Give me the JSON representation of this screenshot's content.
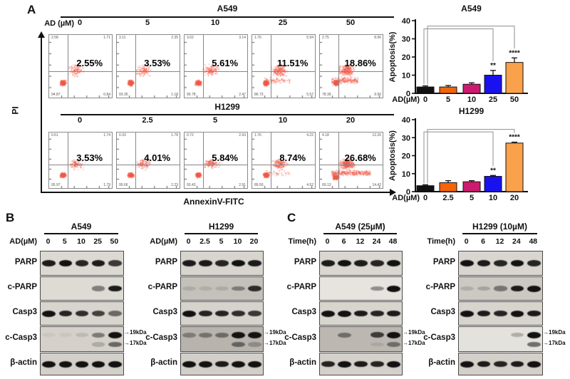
{
  "panels": {
    "a": "A",
    "b": "B",
    "c": "C"
  },
  "panel_a": {
    "dose_label": "AD (µM)",
    "y_axis": "PI",
    "x_axis": "AnnexinV-FITC",
    "rows": [
      {
        "cell_line": "A549",
        "doses": [
          "0",
          "5",
          "10",
          "25",
          "50"
        ],
        "plots": [
          {
            "pct": "2.55%",
            "q": {
              "ul": "2.58",
              "ur": "1.71",
              "ll": "94.87",
              "lr": "0.84"
            }
          },
          {
            "pct": "3.53%",
            "q": {
              "ul": "3.11",
              "ur": "2.35",
              "ll": "93.35",
              "lr": "1.18"
            }
          },
          {
            "pct": "5.61%",
            "q": {
              "ul": "3.62",
              "ur": "3.14",
              "ll": "90.78",
              "lr": "2.47"
            }
          },
          {
            "pct": "11.51%",
            "q": {
              "ul": "1.76",
              "ur": "5.94",
              "ll": "86.73",
              "lr": "5.57"
            }
          },
          {
            "pct": "18.86%",
            "q": {
              "ul": "2.75",
              "ur": "8.96",
              "ll": "78.39",
              "lr": "9.90"
            }
          }
        ]
      },
      {
        "cell_line": "H1299",
        "doses": [
          "0",
          "2.5",
          "5",
          "10",
          "20"
        ],
        "plots": [
          {
            "pct": "3.53%",
            "q": {
              "ul": "0.51",
              "ur": "1.74",
              "ll": "95.97",
              "lr": "1.79"
            }
          },
          {
            "pct": "4.01%",
            "q": {
              "ul": "0.33",
              "ur": "1.78",
              "ll": "95.66",
              "lr": "2.23"
            }
          },
          {
            "pct": "5.84%",
            "q": {
              "ul": "0.72",
              "ur": "2.93",
              "ll": "93.43",
              "lr": "2.91"
            }
          },
          {
            "pct": "8.74%",
            "q": {
              "ul": "1.76",
              "ur": "4.22",
              "ll": "89.50",
              "lr": "4.52"
            }
          },
          {
            "pct": "26.68%",
            "q": {
              "ul": "4.18",
              "ur": "12.26",
              "ll": "69.13",
              "lr": "14.42"
            }
          }
        ]
      }
    ]
  },
  "chart_data": [
    {
      "type": "bar",
      "title": "A549",
      "ylabel": "Apoptosis(%)",
      "xlabel_prefix": "AD(µM)",
      "categories": [
        "0",
        "5",
        "10",
        "25",
        "50"
      ],
      "values": [
        3.5,
        3.5,
        5,
        10,
        17
      ],
      "errors": [
        0.6,
        0.8,
        0.8,
        2.6,
        2.5
      ],
      "sig": [
        "",
        "",
        "",
        "**",
        "****"
      ],
      "ylim": [
        0,
        40
      ],
      "yticks": [
        0,
        10,
        20,
        30,
        40
      ],
      "bar_colors": [
        "#111111",
        "#F4640A",
        "#CE1A6E",
        "#1A12EE",
        "#F9A14B"
      ],
      "comparisons": [
        {
          "from": 0,
          "to": 3,
          "level": 35.5
        },
        {
          "from": 0,
          "to": 4,
          "level": 37
        }
      ]
    },
    {
      "type": "bar",
      "title": "H1299",
      "ylabel": "Apoptosis(%)",
      "xlabel_prefix": "AD(µM)",
      "categories": [
        "0",
        "2.5",
        "5",
        "10",
        "20"
      ],
      "values": [
        3.3,
        5,
        5.5,
        8.5,
        27
      ],
      "errors": [
        0.5,
        1.1,
        0.6,
        0.5,
        0.5
      ],
      "sig": [
        "",
        "",
        "",
        "**",
        "****"
      ],
      "ylim": [
        0,
        40
      ],
      "yticks": [
        0,
        10,
        20,
        30,
        40
      ],
      "bar_colors": [
        "#111111",
        "#F4640A",
        "#CE1A6E",
        "#1A12EE",
        "#F9A14B"
      ],
      "comparisons": [
        {
          "from": 0,
          "to": 3,
          "level": 33.2
        },
        {
          "from": 0,
          "to": 4,
          "level": 34.6
        }
      ]
    }
  ],
  "blots": {
    "kda_labels": [
      "19kDa",
      "17kDa"
    ],
    "groups": [
      {
        "panel": "B",
        "title": "A549",
        "cond": "AD(µM)",
        "lanes": [
          "0",
          "5",
          "10",
          "25",
          "50"
        ],
        "rows": [
          {
            "name": "PARP",
            "bg": "#dcd9d3",
            "bands": [
              [
                0.95,
                1,
                0.9,
                0.95,
                0.8
              ]
            ]
          },
          {
            "name": "c-PARP",
            "bg": "#dedbd5",
            "bands": [
              [
                0,
                0,
                0,
                0.45,
                0.95
              ]
            ]
          },
          {
            "name": "Casp3",
            "bg": "#d8d4ce",
            "bands": [
              [
                1,
                0.9,
                0.85,
                0.75,
                0.55
              ]
            ]
          },
          {
            "name": "c-Casp3",
            "bg": "#d5d1ca",
            "kda": true,
            "bands": [
              [
                0.05,
                0.05,
                0.12,
                0.45,
                1
              ],
              [
                0,
                0,
                0,
                0.2,
                0.55
              ]
            ]
          },
          {
            "name": "β-actin",
            "bg": "#d3cfc9",
            "bands": [
              [
                1,
                1,
                1,
                1,
                1
              ]
            ]
          }
        ]
      },
      {
        "panel": "B",
        "title": "H1299",
        "cond": "AD(µM)",
        "lanes": [
          "0",
          "2.5",
          "5",
          "10",
          "20"
        ],
        "rows": [
          {
            "name": "PARP",
            "bg": "#d8d5cf",
            "bands": [
              [
                0.95,
                0.95,
                0.9,
                1,
                0.95
              ]
            ]
          },
          {
            "name": "c-PARP",
            "bg": "#c4c0ba",
            "bands": [
              [
                0.12,
                0.1,
                0.12,
                0.4,
                0.85
              ]
            ]
          },
          {
            "name": "Casp3",
            "bg": "#d6d2cc",
            "bands": [
              [
                1,
                0.9,
                0.9,
                0.85,
                0.8
              ]
            ]
          },
          {
            "name": "c-Casp3",
            "bg": "#b8b4ad",
            "kda": true,
            "bands": [
              [
                0.35,
                0.4,
                0.45,
                1,
                1
              ],
              [
                0,
                0,
                0,
                0.5,
                0.25
              ]
            ]
          },
          {
            "name": "β-actin",
            "bg": "#d2cec8",
            "bands": [
              [
                1,
                1,
                0.95,
                1,
                1
              ]
            ]
          }
        ]
      },
      {
        "panel": "C",
        "title": "A549 (25µM)",
        "cond": "Time(h)",
        "lanes": [
          "0",
          "6",
          "12",
          "24",
          "48"
        ],
        "rows": [
          {
            "name": "PARP",
            "bg": "#dad7d1",
            "bands": [
              [
                0.95,
                1,
                0.95,
                0.9,
                1
              ]
            ]
          },
          {
            "name": "c-PARP",
            "bg": "#e7e4df",
            "bands": [
              [
                0,
                0,
                0,
                0.4,
                1
              ]
            ]
          },
          {
            "name": "Casp3",
            "bg": "#d8d4ce",
            "bands": [
              [
                1,
                1,
                0.95,
                0.9,
                0.95
              ]
            ]
          },
          {
            "name": "c-Casp3",
            "bg": "#bcb8b1",
            "kda": true,
            "bands": [
              [
                0,
                0.45,
                0,
                0.75,
                1
              ],
              [
                0,
                0,
                0,
                0.1,
                0.45
              ]
            ]
          },
          {
            "name": "β-actin",
            "bg": "#d4d0ca",
            "bands": [
              [
                0.9,
                1,
                0.95,
                0.9,
                1
              ]
            ]
          }
        ]
      },
      {
        "panel": "C",
        "title": "H1299 (10µM)",
        "cond": "Time(h)",
        "lanes": [
          "0",
          "6",
          "12",
          "24",
          "48"
        ],
        "rows": [
          {
            "name": "PARP",
            "bg": "#d9d6d0",
            "bands": [
              [
                1,
                0.95,
                0.9,
                1,
                0.9
              ]
            ]
          },
          {
            "name": "c-PARP",
            "bg": "#ccc8c2",
            "bands": [
              [
                0.15,
                0.2,
                0.45,
                0.95,
                1
              ]
            ]
          },
          {
            "name": "Casp3",
            "bg": "#d7d3cd",
            "bands": [
              [
                1,
                0.95,
                0.9,
                1,
                0.95
              ]
            ]
          },
          {
            "name": "c-Casp3",
            "bg": "#e4e2dd",
            "kda": true,
            "bands": [
              [
                0,
                0,
                0,
                0.25,
                1
              ],
              [
                0,
                0,
                0,
                0,
                0.55
              ]
            ]
          },
          {
            "name": "β-actin",
            "bg": "#d3cfc9",
            "bands": [
              [
                1,
                0.95,
                0.9,
                0.95,
                1
              ]
            ]
          }
        ]
      }
    ]
  }
}
